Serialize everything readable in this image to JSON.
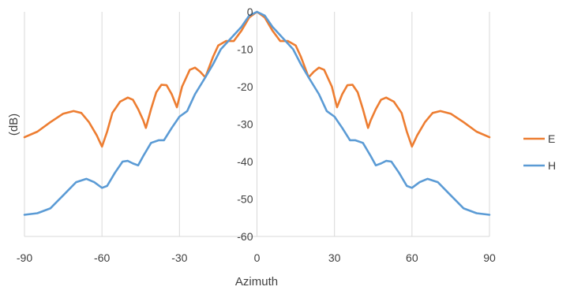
{
  "chart_data": {
    "type": "line",
    "title": "",
    "xlabel": "Azimuth",
    "ylabel": "(dB)",
    "xlim": [
      -90,
      90
    ],
    "ylim": [
      -60,
      0
    ],
    "x_ticks": [
      -90,
      -60,
      -30,
      0,
      30,
      60,
      90
    ],
    "x_tick_labels": [
      "-90",
      "-60",
      "-30",
      "0",
      "30",
      "60",
      "90"
    ],
    "y_ticks": [
      0,
      -10,
      -20,
      -30,
      -40,
      -50,
      -60
    ],
    "y_tick_labels": [
      "0",
      "-10",
      "-20",
      "-30",
      "-40",
      "-50",
      "-60"
    ],
    "grid": "vertical",
    "legend_position": "right",
    "series": [
      {
        "name": "E",
        "color": "#ED7D31",
        "points": [
          [
            -90,
            -33.5
          ],
          [
            -85,
            -32
          ],
          [
            -80,
            -29.5
          ],
          [
            -75,
            -27.2
          ],
          [
            -71,
            -26.5
          ],
          [
            -68,
            -27
          ],
          [
            -65,
            -29.5
          ],
          [
            -62,
            -33
          ],
          [
            -60,
            -36
          ],
          [
            -58,
            -32
          ],
          [
            -56,
            -27
          ],
          [
            -53,
            -24
          ],
          [
            -50,
            -22.9
          ],
          [
            -48,
            -23.5
          ],
          [
            -46,
            -26
          ],
          [
            -44,
            -29
          ],
          [
            -43,
            -31
          ],
          [
            -41,
            -26
          ],
          [
            -39,
            -21.5
          ],
          [
            -37,
            -19.5
          ],
          [
            -35,
            -19.6
          ],
          [
            -33,
            -22
          ],
          [
            -31,
            -25.5
          ],
          [
            -29,
            -20
          ],
          [
            -26,
            -15.5
          ],
          [
            -24,
            -14.9
          ],
          [
            -22,
            -16
          ],
          [
            -20,
            -17.5
          ],
          [
            -17,
            -12
          ],
          [
            -15,
            -9
          ],
          [
            -12,
            -7.8
          ],
          [
            -9,
            -7.8
          ],
          [
            -6,
            -5
          ],
          [
            -3,
            -1.5
          ],
          [
            0,
            0
          ],
          [
            3,
            -1.5
          ],
          [
            6,
            -5
          ],
          [
            9,
            -7.8
          ],
          [
            12,
            -7.8
          ],
          [
            15,
            -9
          ],
          [
            17,
            -12
          ],
          [
            20,
            -17.5
          ],
          [
            22,
            -16
          ],
          [
            24,
            -14.9
          ],
          [
            26,
            -15.5
          ],
          [
            29,
            -20
          ],
          [
            31,
            -25.5
          ],
          [
            33,
            -22
          ],
          [
            35,
            -19.6
          ],
          [
            37,
            -19.5
          ],
          [
            39,
            -21.5
          ],
          [
            41,
            -26
          ],
          [
            43,
            -31
          ],
          [
            44,
            -29
          ],
          [
            46,
            -26
          ],
          [
            48,
            -23.5
          ],
          [
            50,
            -22.9
          ],
          [
            53,
            -24
          ],
          [
            56,
            -27
          ],
          [
            58,
            -32
          ],
          [
            60,
            -36
          ],
          [
            62,
            -33
          ],
          [
            65,
            -29.5
          ],
          [
            68,
            -27
          ],
          [
            71,
            -26.5
          ],
          [
            75,
            -27.2
          ],
          [
            80,
            -29.5
          ],
          [
            85,
            -32
          ],
          [
            90,
            -33.5
          ]
        ]
      },
      {
        "name": "H",
        "color": "#5B9BD5",
        "points": [
          [
            -90,
            -54.2
          ],
          [
            -85,
            -53.8
          ],
          [
            -80,
            -52.5
          ],
          [
            -75,
            -49
          ],
          [
            -70,
            -45.5
          ],
          [
            -66,
            -44.6
          ],
          [
            -63,
            -45.5
          ],
          [
            -60,
            -47
          ],
          [
            -58,
            -46.5
          ],
          [
            -55,
            -43
          ],
          [
            -52,
            -40
          ],
          [
            -50,
            -39.8
          ],
          [
            -48,
            -40.5
          ],
          [
            -46,
            -41
          ],
          [
            -44,
            -38.5
          ],
          [
            -41,
            -35
          ],
          [
            -38,
            -34.3
          ],
          [
            -36,
            -34.3
          ],
          [
            -33,
            -31
          ],
          [
            -30,
            -28
          ],
          [
            -27,
            -26.5
          ],
          [
            -24,
            -22
          ],
          [
            -20,
            -17.5
          ],
          [
            -17,
            -14
          ],
          [
            -14,
            -10
          ],
          [
            -10,
            -7
          ],
          [
            -6,
            -4
          ],
          [
            -3,
            -1
          ],
          [
            0,
            0
          ],
          [
            3,
            -1
          ],
          [
            6,
            -4
          ],
          [
            10,
            -7
          ],
          [
            14,
            -10
          ],
          [
            17,
            -14
          ],
          [
            20,
            -17.5
          ],
          [
            24,
            -22
          ],
          [
            27,
            -26.5
          ],
          [
            30,
            -28
          ],
          [
            33,
            -31
          ],
          [
            36,
            -34.3
          ],
          [
            38,
            -34.3
          ],
          [
            41,
            -35
          ],
          [
            44,
            -38.5
          ],
          [
            46,
            -41
          ],
          [
            48,
            -40.5
          ],
          [
            50,
            -39.8
          ],
          [
            52,
            -40
          ],
          [
            55,
            -43
          ],
          [
            58,
            -46.5
          ],
          [
            60,
            -47
          ],
          [
            63,
            -45.5
          ],
          [
            66,
            -44.6
          ],
          [
            70,
            -45.5
          ],
          [
            75,
            -49
          ],
          [
            80,
            -52.5
          ],
          [
            85,
            -53.8
          ],
          [
            90,
            -54.2
          ]
        ]
      }
    ]
  }
}
